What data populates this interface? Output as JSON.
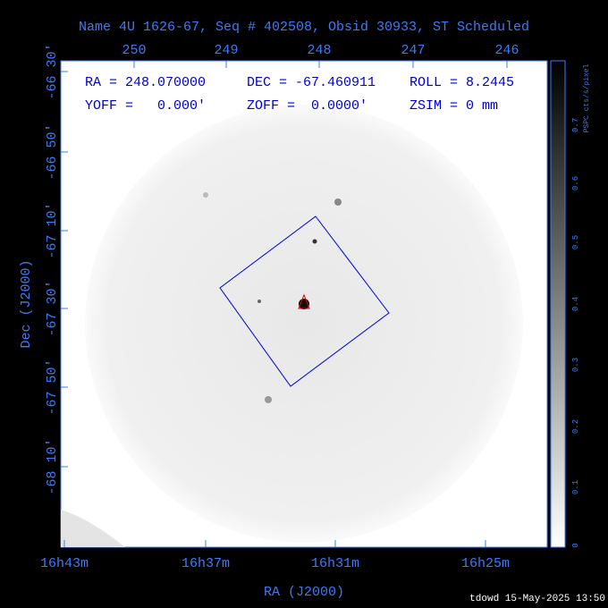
{
  "header": {
    "title": "Name 4U 1626-67, Seq # 402508, Obsid 30933, ST Scheduled"
  },
  "info": {
    "row1": [
      "RA = 248.070000",
      "DEC = -67.460911",
      "ROLL = 8.2445"
    ],
    "row2": [
      "YOFF =   0.000'",
      "ZOFF =  0.0000'",
      "ZSIM = 0 mm"
    ]
  },
  "top_axis": {
    "ticks": [
      "250",
      "249",
      "248",
      "247",
      "246"
    ]
  },
  "bottom_axis": {
    "ticks": [
      "16h43m",
      "16h37m",
      "16h31m",
      "16h25m"
    ],
    "label": "RA (J2000)"
  },
  "left_axis": {
    "ticks": [
      "-66 30'",
      "-66 50'",
      "-67 10'",
      "-67 30'",
      "-67 50'",
      "-68 10'"
    ],
    "label": "Dec (J2000)"
  },
  "colorbar": {
    "ticks": [
      "0",
      "0.1",
      "0.2",
      "0.3",
      "0.4",
      "0.5",
      "0.6",
      "0.7"
    ],
    "label": "PSPC cts/s/pixel"
  },
  "footer": {
    "stamp": "tdowd 15-May-2025 13:50"
  }
}
